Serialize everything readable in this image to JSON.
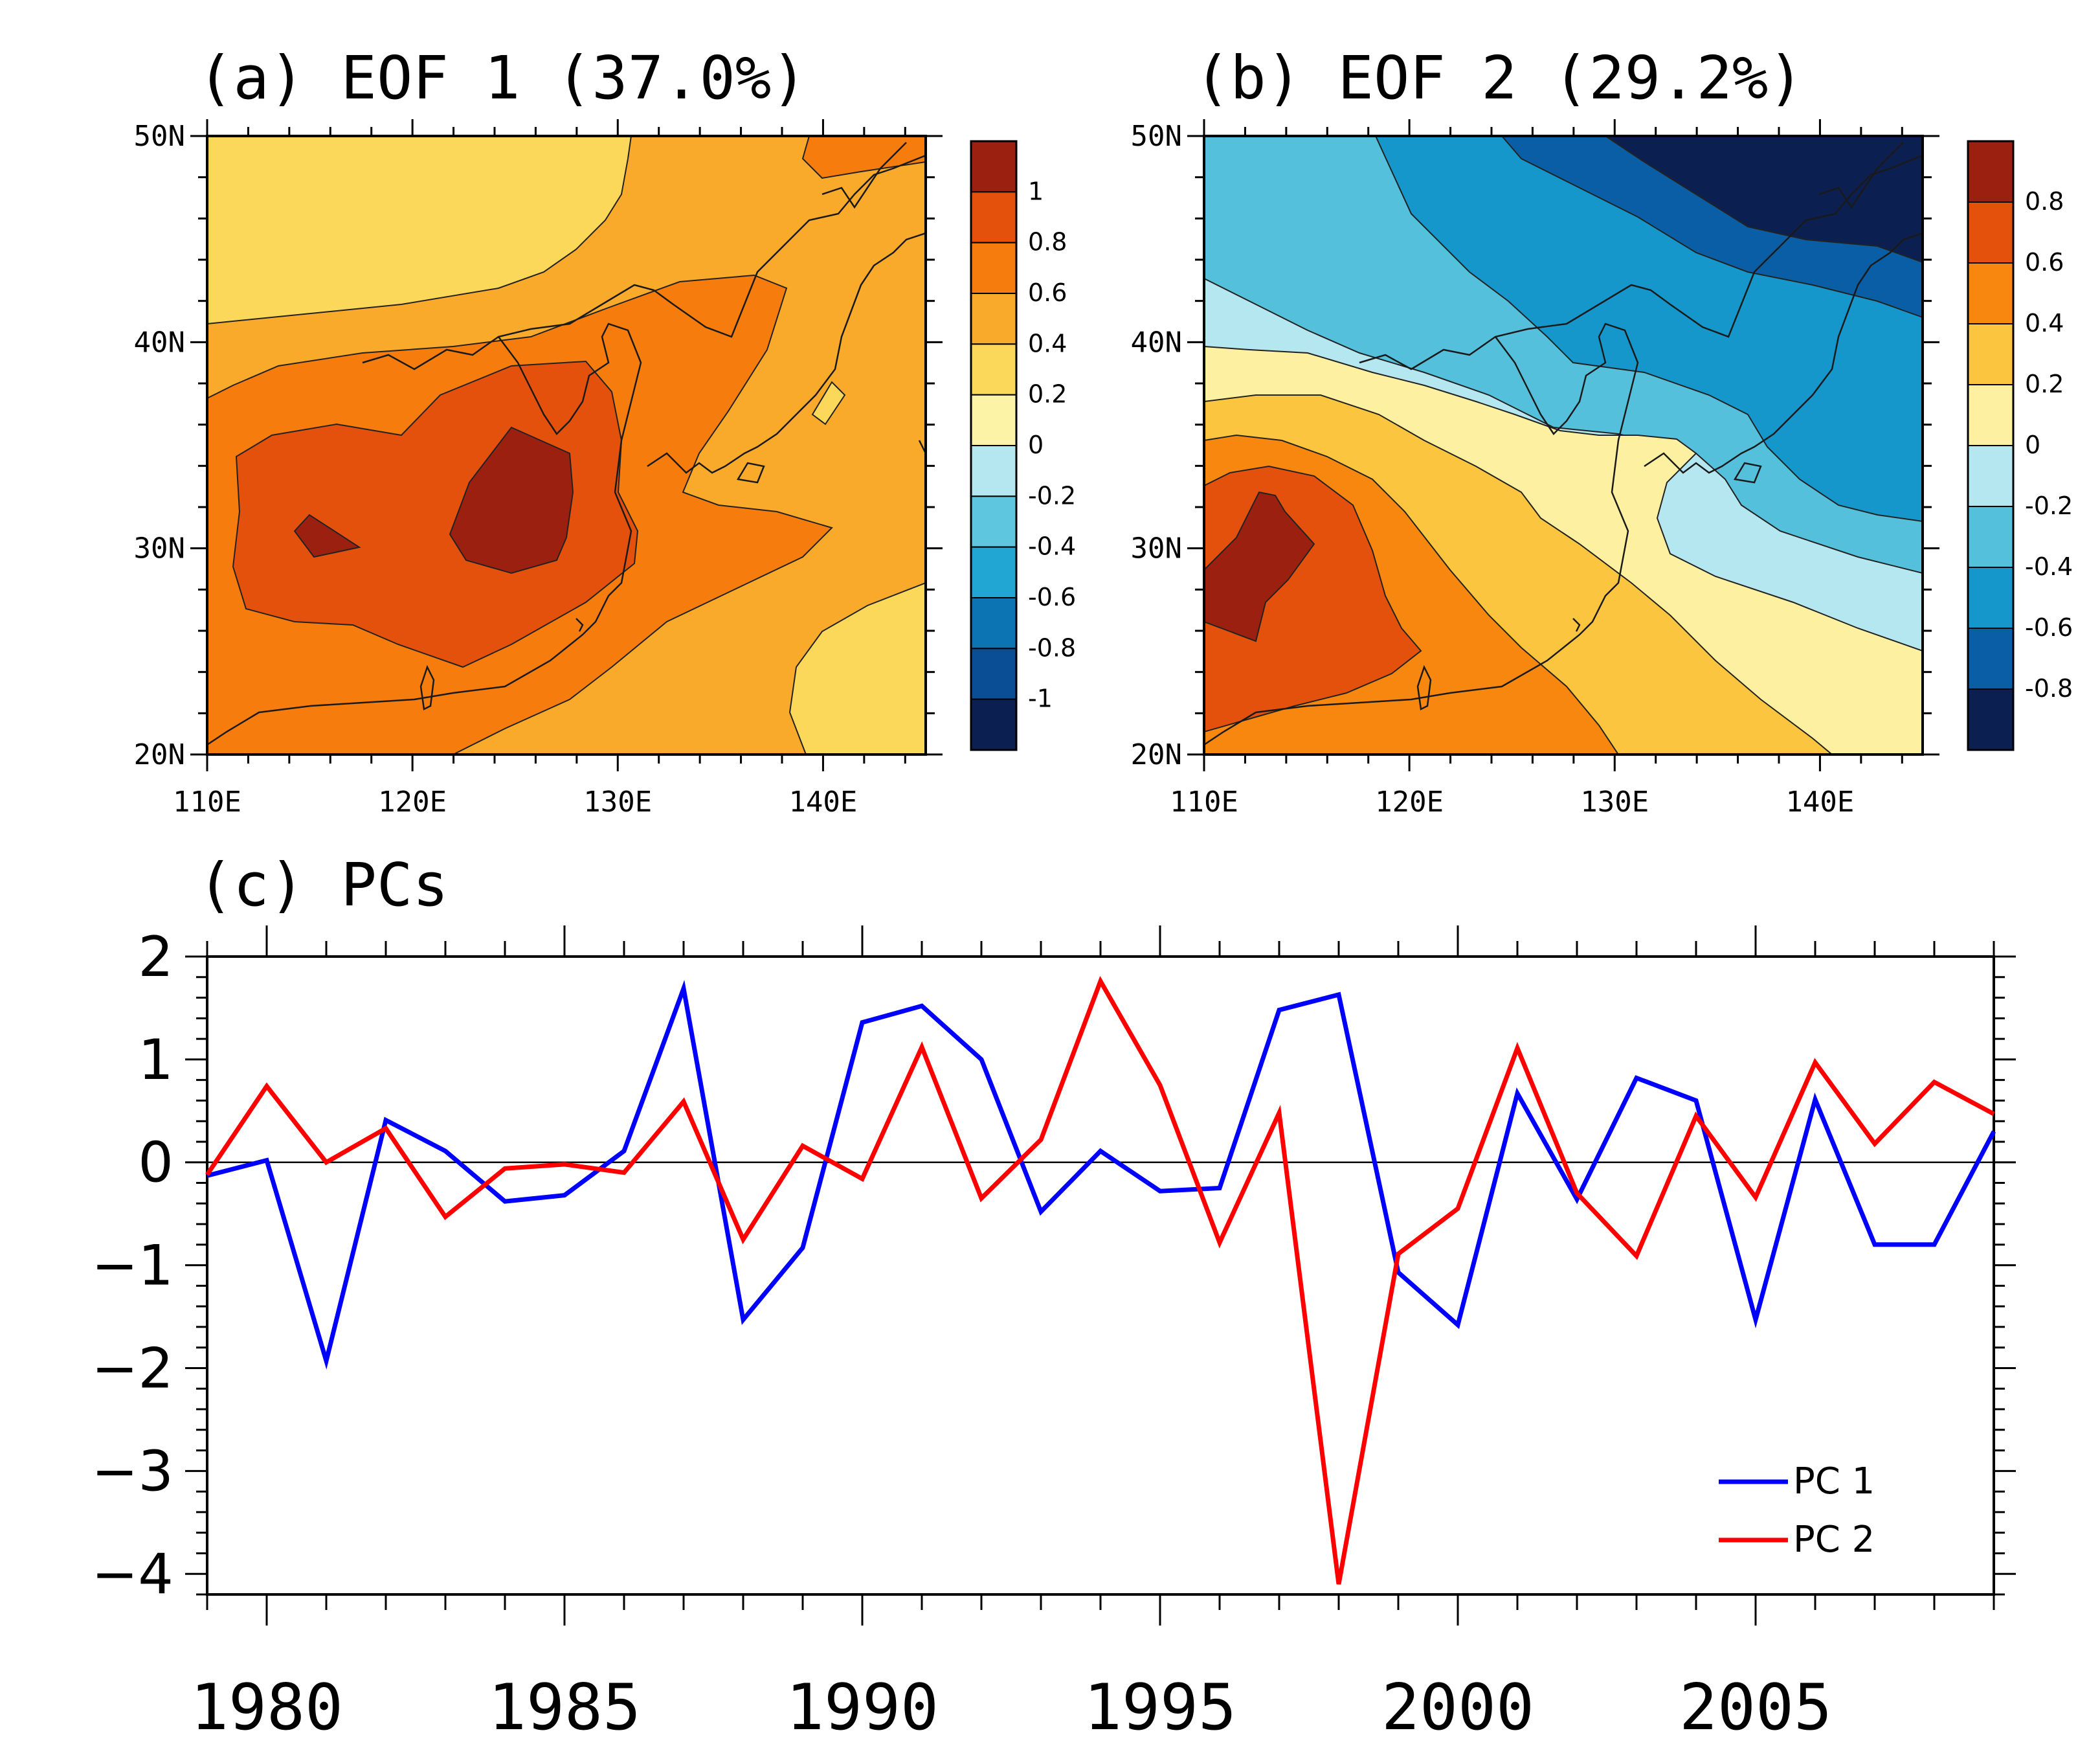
{
  "chart_data": [
    {
      "type": "heatmap",
      "panel": "a",
      "title": "(a) EOF 1 (37.0%)",
      "x_ticks": [
        "110E",
        "120E",
        "130E",
        "140E"
      ],
      "y_ticks": [
        "20N",
        "30N",
        "40N",
        "50N"
      ],
      "xlim": [
        110,
        145
      ],
      "ylim": [
        20,
        50
      ],
      "colorbar_labels": [
        "1",
        "0.8",
        "0.6",
        "0.4",
        "0.2",
        "0",
        "-0.2",
        "-0.4",
        "-0.6",
        "-0.8",
        "-1"
      ],
      "colorbar_colors": [
        "#9c2010",
        "#e4510c",
        "#f57c0d",
        "#f9aa2a",
        "#fbd75a",
        "#fdf3a6",
        "#b4e7f0",
        "#5fc6df",
        "#21a6d3",
        "#0d74b3",
        "#0a4e96",
        "#0b2050"
      ],
      "contour_levels": [
        0.2,
        0.4,
        0.6,
        0.8,
        1.0
      ],
      "max_value": 1.0,
      "max_location": [
        125,
        32
      ]
    },
    {
      "type": "heatmap",
      "panel": "b",
      "title": "(b) EOF 2 (29.2%)",
      "x_ticks": [
        "110E",
        "120E",
        "130E",
        "140E"
      ],
      "y_ticks": [
        "20N",
        "30N",
        "40N",
        "50N"
      ],
      "xlim": [
        110,
        145
      ],
      "ylim": [
        20,
        50
      ],
      "colorbar_labels": [
        "0.8",
        "0.6",
        "0.4",
        "0.2",
        "0",
        "-0.2",
        "-0.4",
        "-0.6",
        "-0.8"
      ],
      "colorbar_colors": [
        "#9c2010",
        "#e4510c",
        "#f7870e",
        "#fbc540",
        "#fdf0a0",
        "#b4e7f0",
        "#55c0dc",
        "#1597cb",
        "#0a5ea5",
        "#0b2050"
      ],
      "contour_levels": [
        -0.8,
        -0.6,
        -0.4,
        -0.2,
        0,
        0.2,
        0.4,
        0.6,
        0.8
      ],
      "max_value": 0.8,
      "min_value": -0.8
    },
    {
      "type": "line",
      "panel": "c",
      "title": "(c) PCs",
      "x": [
        1979,
        1980,
        1981,
        1982,
        1983,
        1984,
        1985,
        1986,
        1987,
        1988,
        1989,
        1990,
        1991,
        1992,
        1993,
        1994,
        1995,
        1996,
        1997,
        1998,
        1999,
        2000,
        2001,
        2002,
        2003,
        2004,
        2005,
        2006,
        2007,
        2008,
        2009
      ],
      "x_tick_labels": [
        "1980",
        "1985",
        "1990",
        "1995",
        "2000",
        "2005"
      ],
      "y_tick_labels": [
        "2",
        "1",
        "0",
        "−1",
        "−2",
        "−3",
        "−4"
      ],
      "xlim": [
        1979,
        2009
      ],
      "ylim": [
        -4.2,
        2
      ],
      "series": [
        {
          "name": "PC 1",
          "color": "#0000ff",
          "values": [
            -0.13,
            0.02,
            -1.93,
            0.41,
            0.11,
            -0.38,
            -0.32,
            0.11,
            1.69,
            -1.53,
            -0.83,
            1.36,
            1.52,
            1.0,
            -0.48,
            0.11,
            -0.28,
            -0.25,
            1.48,
            1.63,
            -1.07,
            -1.58,
            0.67,
            -0.36,
            0.82,
            0.6,
            -1.53,
            0.61,
            -0.8,
            -0.8,
            0.3
          ]
        },
        {
          "name": "PC 2",
          "color": "#ff0000",
          "values": [
            -0.12,
            0.74,
            0.0,
            0.33,
            -0.53,
            -0.06,
            -0.02,
            -0.1,
            0.59,
            -0.75,
            0.16,
            -0.16,
            1.12,
            -0.35,
            0.22,
            1.76,
            0.75,
            -0.78,
            0.48,
            -4.1,
            -0.89,
            -0.45,
            1.11,
            -0.3,
            -0.91,
            0.45,
            -0.34,
            0.97,
            0.18,
            0.78,
            0.47
          ]
        }
      ],
      "legend_position": "bottom-right"
    }
  ]
}
